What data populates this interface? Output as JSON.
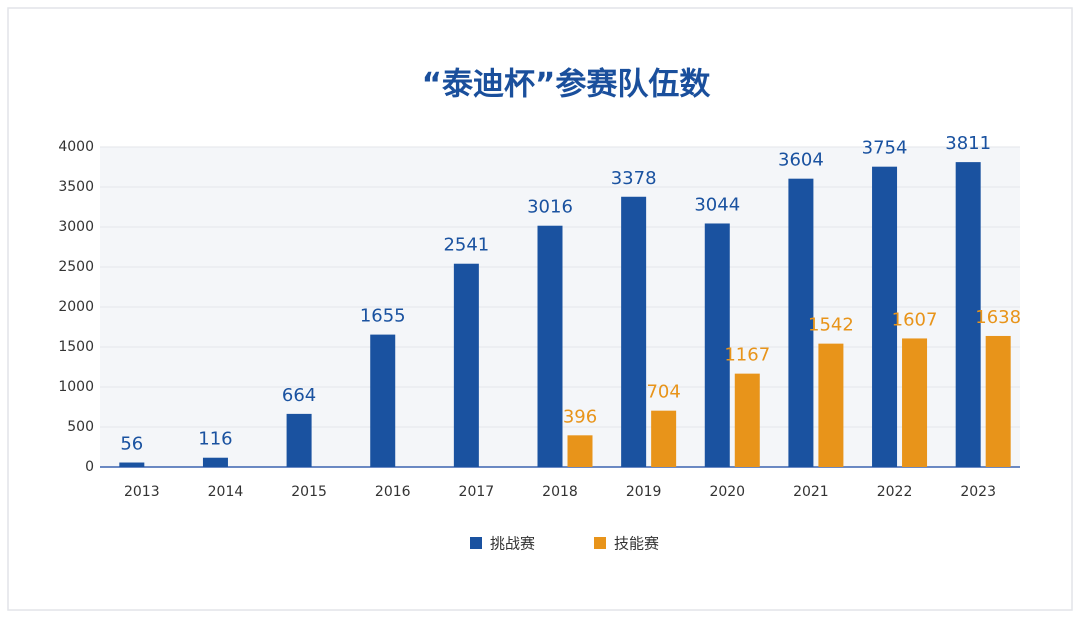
{
  "chart_data": {
    "type": "bar",
    "title": "“泰迪杯”参赛队伍数",
    "categories": [
      "2013",
      "2014",
      "2015",
      "2016",
      "2017",
      "2018",
      "2019",
      "2020",
      "2021",
      "2022",
      "2023"
    ],
    "series": [
      {
        "name": "挑战赛",
        "color": "#1a52a0",
        "values": [
          56,
          116,
          664,
          1655,
          2541,
          3016,
          3378,
          3044,
          3604,
          3754,
          3811
        ]
      },
      {
        "name": "技能赛",
        "color": "#e8941a",
        "values": [
          null,
          null,
          null,
          null,
          null,
          396,
          704,
          1167,
          1542,
          1607,
          1638
        ]
      }
    ],
    "ylim": [
      0,
      4000
    ],
    "yticks": [
      0,
      500,
      1000,
      1500,
      2000,
      2500,
      3000,
      3500,
      4000
    ],
    "grid": true,
    "legend": "bottom"
  }
}
